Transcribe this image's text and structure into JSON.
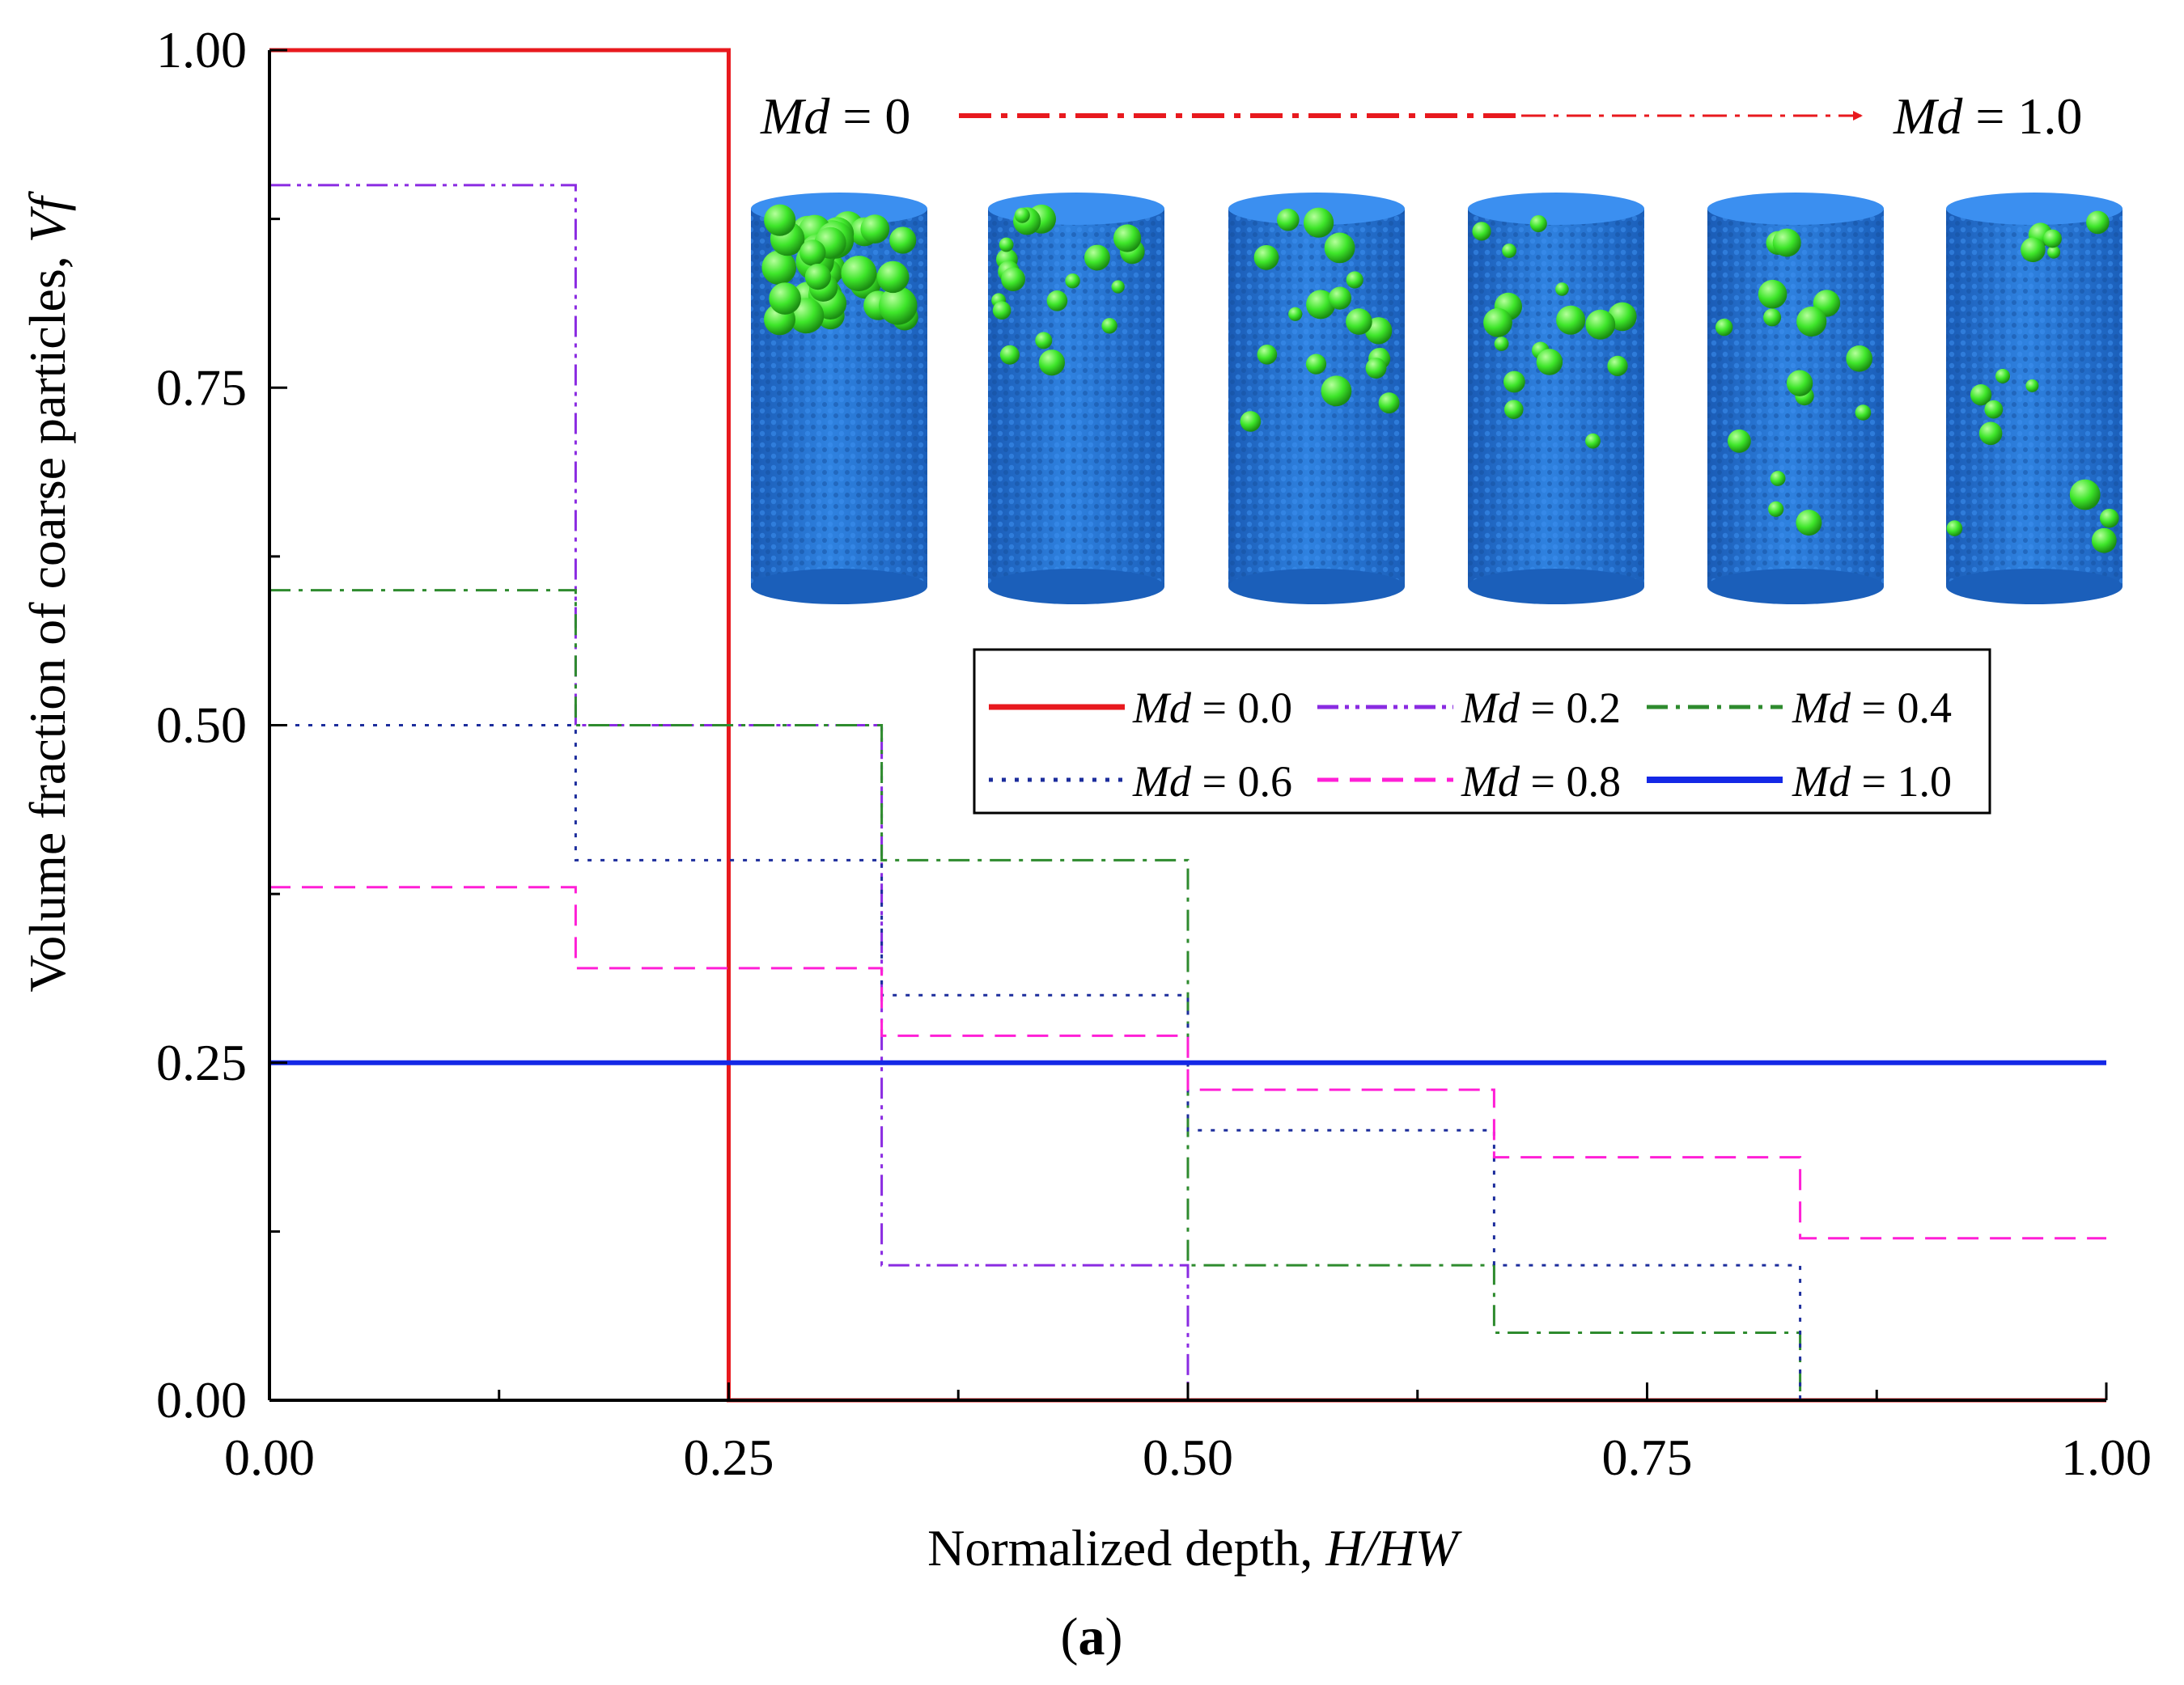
{
  "chart_data": {
    "type": "line",
    "subtype": "step",
    "x_title_text": "Normalized depth, ",
    "x_title_var": "H/HW",
    "y_title_text": "Volume fraction of coarse particles, ",
    "y_title_var": "Vf",
    "xlim": [
      0,
      1
    ],
    "ylim": [
      0,
      1
    ],
    "x_ticks": [
      "0.00",
      "0.25",
      "0.50",
      "0.75",
      "1.00"
    ],
    "y_ticks": [
      "0.00",
      "0.25",
      "0.50",
      "0.75",
      "1.00"
    ],
    "caption_open": "(",
    "caption_letter": "a",
    "caption_close": ")",
    "inset": {
      "start_var": "Md",
      "start_val": " = 0",
      "end_var": "Md",
      "end_val": " = 1.0",
      "arrow_color": "#e8191e",
      "cylinders": 6,
      "fine_color": "#2471d3",
      "coarse_color": "#3ee62a"
    },
    "series": [
      {
        "name_var": "Md",
        "name_val": " = 0.0",
        "color": "#e8191e",
        "style": "solid",
        "width": 5,
        "x": [
          0,
          0.25,
          0.25,
          1.0
        ],
        "y": [
          1.0,
          1.0,
          0.0,
          0.0
        ]
      },
      {
        "name_var": "Md",
        "name_val": " = 0.2",
        "color": "#8a2be2",
        "style": "dashdotdot",
        "width": 3,
        "x": [
          0,
          0.1667,
          0.1667,
          0.3333,
          0.3333,
          0.5,
          0.5
        ],
        "y": [
          0.9,
          0.9,
          0.5,
          0.5,
          0.1,
          0.1,
          0.0
        ]
      },
      {
        "name_var": "Md",
        "name_val": " = 0.4",
        "color": "#2e8b2e",
        "style": "dashdot",
        "width": 3,
        "x": [
          0,
          0.1667,
          0.1667,
          0.3333,
          0.3333,
          0.5,
          0.5,
          0.6667,
          0.6667,
          0.8333,
          0.8333
        ],
        "y": [
          0.6,
          0.6,
          0.5,
          0.5,
          0.4,
          0.4,
          0.1,
          0.1,
          0.05,
          0.05,
          0.0
        ]
      },
      {
        "name_var": "Md",
        "name_val": " = 0.6",
        "color": "#1c2d9c",
        "style": "dotted",
        "width": 3,
        "x": [
          0,
          0.1667,
          0.1667,
          0.3333,
          0.3333,
          0.5,
          0.5,
          0.6667,
          0.6667,
          0.8333,
          0.8333
        ],
        "y": [
          0.5,
          0.5,
          0.4,
          0.4,
          0.3,
          0.3,
          0.2,
          0.2,
          0.1,
          0.1,
          0.0
        ]
      },
      {
        "name_var": "Md",
        "name_val": " = 0.8",
        "color": "#ff1fd6",
        "style": "dashed",
        "width": 3,
        "x": [
          0,
          0.1667,
          0.1667,
          0.3333,
          0.3333,
          0.5,
          0.5,
          0.6667,
          0.6667,
          0.8333,
          0.8333,
          1.0
        ],
        "y": [
          0.38,
          0.38,
          0.32,
          0.32,
          0.27,
          0.27,
          0.23,
          0.23,
          0.18,
          0.18,
          0.12,
          0.12
        ]
      },
      {
        "name_var": "Md",
        "name_val": " = 1.0",
        "color": "#1428e6",
        "style": "solid",
        "width": 6,
        "x": [
          0,
          1.0
        ],
        "y": [
          0.25,
          0.25
        ]
      }
    ]
  }
}
